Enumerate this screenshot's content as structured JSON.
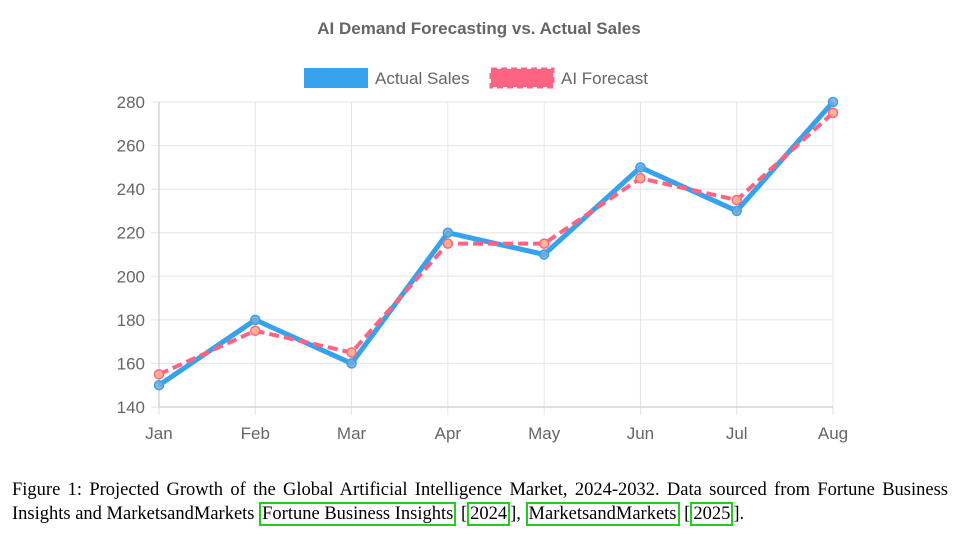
{
  "chart_data": {
    "type": "line",
    "title": "AI Demand Forecasting vs. Actual Sales",
    "categories": [
      "Jan",
      "Feb",
      "Mar",
      "Apr",
      "May",
      "Jun",
      "Jul",
      "Aug"
    ],
    "series": [
      {
        "name": "Actual Sales",
        "values": [
          150,
          180,
          160,
          220,
          210,
          250,
          230,
          280
        ],
        "color": "#36a2eb",
        "style": "solid"
      },
      {
        "name": "AI Forecast",
        "values": [
          155,
          175,
          165,
          215,
          215,
          245,
          235,
          275
        ],
        "color": "#ff6384",
        "style": "dashed"
      }
    ],
    "ylim": [
      140,
      280
    ],
    "yticks": [
      "140",
      "160",
      "180",
      "200",
      "220",
      "240",
      "260",
      "280"
    ],
    "grid": true,
    "legend_position": "top"
  },
  "caption": {
    "text_line1": "Figure 1: Projected Growth of the Global Artificial Intelligence Market, 2024-2032. Data sourced from",
    "text_line2": "Fortune Business Insights and MarketsandMarkets ",
    "cite1_name": "Fortune Business Insights",
    "cite1_year": "2024",
    "cite2_name": "MarketsandMarkets",
    "cite2_year": "2025",
    "separator": ", ",
    "end": "."
  },
  "colors": {
    "grid": "#e5e5e5",
    "axis": "#cccccc",
    "text": "#666666",
    "cite_border": "#22cc22"
  }
}
